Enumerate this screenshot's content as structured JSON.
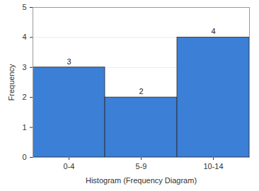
{
  "chart_data": {
    "type": "bar",
    "categories": [
      "0-4",
      "5-9",
      "10-14"
    ],
    "values": [
      3,
      2,
      4
    ],
    "color": "#3b7fd6",
    "xlabel": "Histogram (Frequency Diagram)",
    "ylabel": "Frequency",
    "ylim": [
      0,
      5
    ],
    "yticks": [
      0,
      1,
      2,
      3,
      4,
      5
    ],
    "grid": true,
    "data_labels": true
  }
}
